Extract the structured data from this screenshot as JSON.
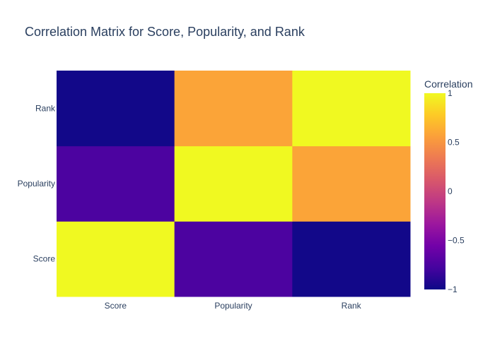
{
  "chart_data": {
    "type": "heatmap",
    "title": "Correlation Matrix for Score, Popularity, and Rank",
    "x_categories": [
      "Score",
      "Popularity",
      "Rank"
    ],
    "y_categories": [
      "Score",
      "Popularity",
      "Rank"
    ],
    "z": [
      [
        1.0,
        -0.75,
        -0.98
      ],
      [
        -0.75,
        1.0,
        0.58
      ],
      [
        -0.98,
        0.58,
        1.0
      ]
    ],
    "zlim": [
      -1,
      1
    ],
    "colorbar": {
      "title": "Correlation",
      "tick_values": [
        1,
        0.5,
        0,
        -0.5,
        -1
      ],
      "tick_labels": [
        "1",
        "0.5",
        "0",
        "−0.5",
        "−1"
      ]
    },
    "colorscale": [
      "#0d0887",
      "#46039f",
      "#7201a8",
      "#9c179e",
      "#bd3786",
      "#d8576b",
      "#ed7953",
      "#fb9f3a",
      "#fdca26",
      "#f0f921"
    ]
  }
}
